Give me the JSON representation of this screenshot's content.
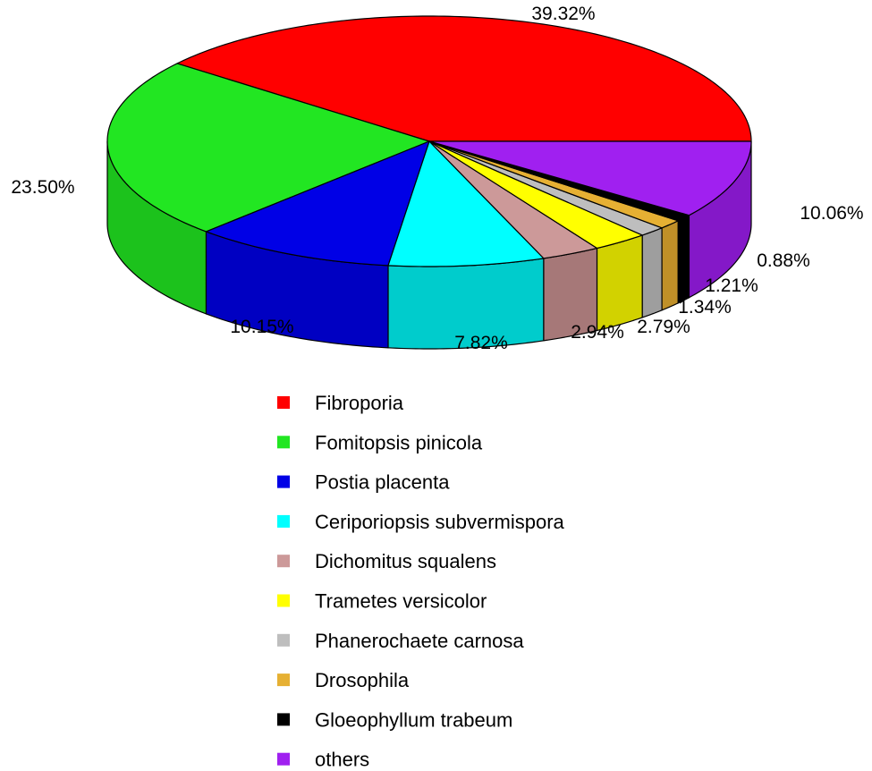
{
  "chart_data": {
    "type": "pie",
    "style": "3d-pie",
    "legend_position": "bottom",
    "slices": [
      {
        "label": "Fibroporia",
        "value": 39.32,
        "value_label": "39.32%",
        "color": "#ff0000",
        "side_color": "#d90000"
      },
      {
        "label": "Fomitopsis pinicola",
        "value": 23.5,
        "value_label": "23.50%",
        "color": "#22e622",
        "side_color": "#1cc21c"
      },
      {
        "label": "Postia placenta",
        "value": 10.15,
        "value_label": "10.15%",
        "color": "#0000e6",
        "side_color": "#0000c2"
      },
      {
        "label": "Ceriporiopsis subvermispora",
        "value": 7.82,
        "value_label": "7.82%",
        "color": "#00ffff",
        "side_color": "#00cccc"
      },
      {
        "label": "Dichomitus squalens",
        "value": 2.94,
        "value_label": "2.94%",
        "color": "#cc9999",
        "side_color": "#a67878"
      },
      {
        "label": "Trametes versicolor",
        "value": 2.79,
        "value_label": "2.79%",
        "color": "#ffff00",
        "side_color": "#d2d200"
      },
      {
        "label": "Phanerochaete carnosa",
        "value": 1.34,
        "value_label": "1.34%",
        "color": "#bebebe",
        "side_color": "#9e9e9e"
      },
      {
        "label": "Drosophila",
        "value": 1.21,
        "value_label": "1.21%",
        "color": "#e6b033",
        "side_color": "#c09028"
      },
      {
        "label": "Gloeophyllum trabeum",
        "value": 0.88,
        "value_label": "0.88%",
        "color": "#000000",
        "side_color": "#000000"
      },
      {
        "label": "others",
        "value": 10.06,
        "value_label": "10.06%",
        "color": "#a020f0",
        "side_color": "#8418c8"
      }
    ]
  }
}
